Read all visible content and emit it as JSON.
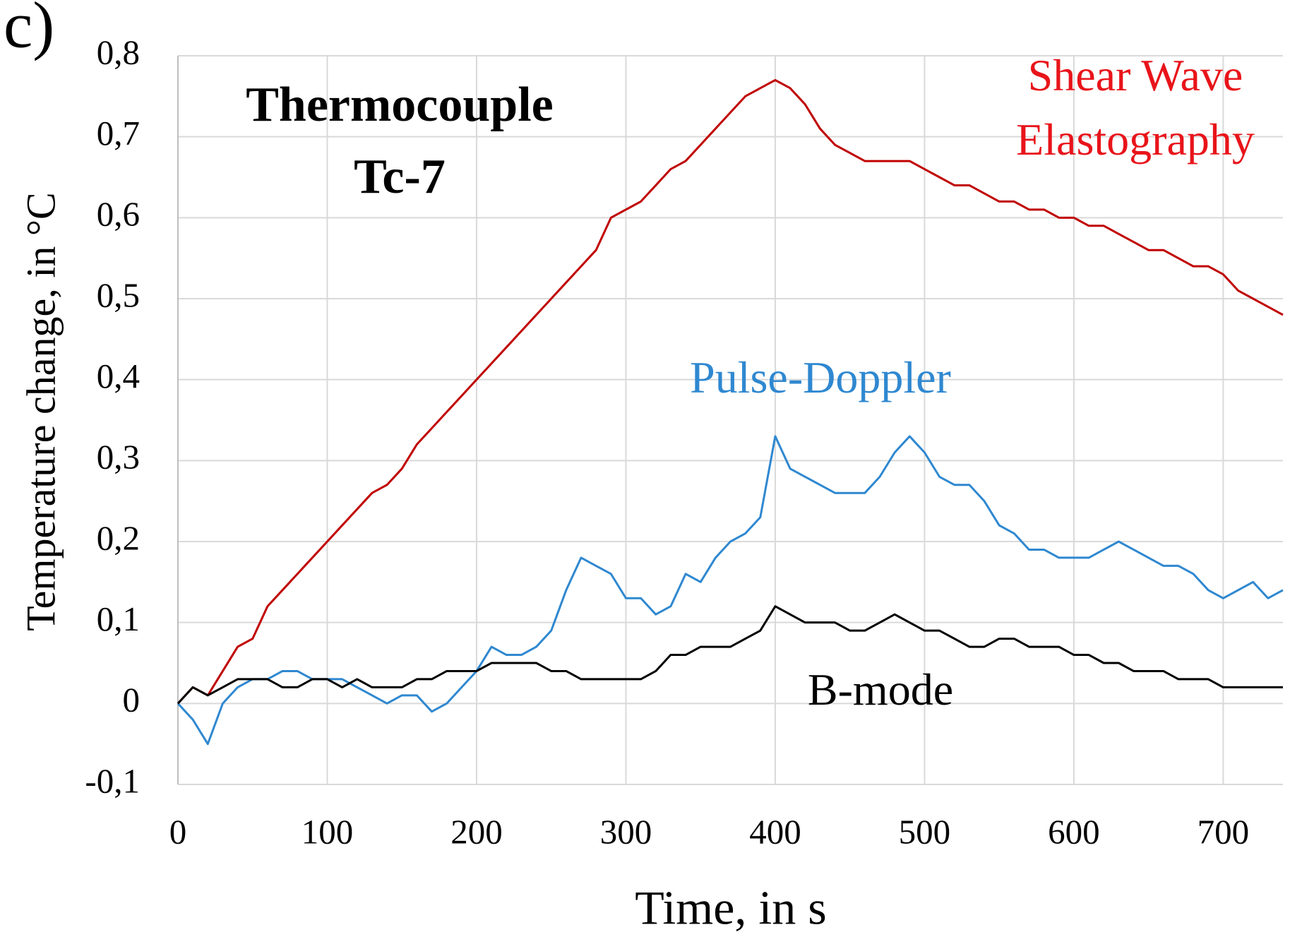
{
  "chart_data": {
    "type": "line",
    "panel_label": "c)",
    "title": "Thermocouple Tc-7",
    "xlabel": "Time, in s",
    "ylabel": "Temperature change, in °C",
    "xlim": [
      0,
      740
    ],
    "xticks": [
      0,
      100,
      200,
      300,
      400,
      500,
      600,
      700
    ],
    "ylim": [
      -0.1,
      0.8
    ],
    "yticks": [
      {
        "value": -0.1,
        "label": "-0,1"
      },
      0,
      {
        "value": 0.1,
        "label": "0,1"
      },
      {
        "value": 0.2,
        "label": "0,2"
      },
      {
        "value": 0.3,
        "label": "0,3"
      },
      {
        "value": 0.4,
        "label": "0,4"
      },
      {
        "value": 0.5,
        "label": "0,5"
      },
      {
        "value": 0.6,
        "label": "0,6"
      },
      {
        "value": 0.7,
        "label": "0,7"
      },
      {
        "value": 0.8,
        "label": "0,8"
      }
    ],
    "grid": true,
    "x": [
      0,
      10,
      20,
      30,
      40,
      50,
      60,
      70,
      80,
      90,
      100,
      110,
      120,
      130,
      140,
      150,
      160,
      170,
      180,
      190,
      200,
      210,
      220,
      230,
      240,
      250,
      260,
      270,
      280,
      290,
      300,
      310,
      320,
      330,
      340,
      350,
      360,
      370,
      380,
      390,
      400,
      410,
      420,
      430,
      440,
      450,
      460,
      470,
      480,
      490,
      500,
      510,
      520,
      530,
      540,
      550,
      560,
      570,
      580,
      590,
      600,
      610,
      620,
      630,
      640,
      650,
      660,
      670,
      680,
      690,
      700,
      710,
      720,
      730,
      740
    ],
    "series": [
      {
        "name": "Shear Wave Elastography",
        "color": "#c00000",
        "label_color": "#e8141a",
        "values": [
          0,
          0.02,
          0.01,
          0.04,
          0.07,
          0.08,
          0.12,
          0.14,
          0.16,
          0.18,
          0.2,
          0.22,
          0.24,
          0.26,
          0.27,
          0.29,
          0.32,
          0.34,
          0.36,
          0.38,
          0.4,
          0.42,
          0.44,
          0.46,
          0.48,
          0.5,
          0.52,
          0.54,
          0.56,
          0.6,
          0.61,
          0.62,
          0.64,
          0.66,
          0.67,
          0.69,
          0.71,
          0.73,
          0.75,
          0.76,
          0.77,
          0.76,
          0.74,
          0.71,
          0.69,
          0.68,
          0.67,
          0.67,
          0.67,
          0.67,
          0.66,
          0.65,
          0.64,
          0.64,
          0.63,
          0.62,
          0.62,
          0.61,
          0.61,
          0.6,
          0.6,
          0.59,
          0.59,
          0.58,
          0.57,
          0.56,
          0.56,
          0.55,
          0.54,
          0.54,
          0.53,
          0.51,
          0.5,
          0.49,
          0.48
        ]
      },
      {
        "name": "Pulse-Doppler",
        "color": "#2f88d0",
        "label_color": "#2f88d0",
        "values": [
          0,
          -0.02,
          -0.05,
          0,
          0.02,
          0.03,
          0.03,
          0.04,
          0.04,
          0.03,
          0.03,
          0.03,
          0.02,
          0.01,
          0,
          0.01,
          0.01,
          -0.01,
          0,
          0.02,
          0.04,
          0.07,
          0.06,
          0.06,
          0.07,
          0.09,
          0.14,
          0.18,
          0.17,
          0.16,
          0.13,
          0.13,
          0.11,
          0.12,
          0.16,
          0.15,
          0.18,
          0.2,
          0.21,
          0.23,
          0.33,
          0.29,
          0.28,
          0.27,
          0.26,
          0.26,
          0.26,
          0.28,
          0.31,
          0.33,
          0.31,
          0.28,
          0.27,
          0.27,
          0.25,
          0.22,
          0.21,
          0.19,
          0.19,
          0.18,
          0.18,
          0.18,
          0.19,
          0.2,
          0.19,
          0.18,
          0.17,
          0.17,
          0.16,
          0.14,
          0.13,
          0.14,
          0.15,
          0.13,
          0.14
        ]
      },
      {
        "name": "B-mode",
        "color": "#000000",
        "label_color": "#000000",
        "values": [
          0,
          0.02,
          0.01,
          0.02,
          0.03,
          0.03,
          0.03,
          0.02,
          0.02,
          0.03,
          0.03,
          0.02,
          0.03,
          0.02,
          0.02,
          0.02,
          0.03,
          0.03,
          0.04,
          0.04,
          0.04,
          0.05,
          0.05,
          0.05,
          0.05,
          0.04,
          0.04,
          0.03,
          0.03,
          0.03,
          0.03,
          0.03,
          0.04,
          0.06,
          0.06,
          0.07,
          0.07,
          0.07,
          0.08,
          0.09,
          0.12,
          0.11,
          0.1,
          0.1,
          0.1,
          0.09,
          0.09,
          0.1,
          0.11,
          0.1,
          0.09,
          0.09,
          0.08,
          0.07,
          0.07,
          0.08,
          0.08,
          0.07,
          0.07,
          0.07,
          0.06,
          0.06,
          0.05,
          0.05,
          0.04,
          0.04,
          0.04,
          0.03,
          0.03,
          0.03,
          0.02,
          0.02,
          0.02,
          0.02,
          0.02
        ]
      }
    ]
  }
}
